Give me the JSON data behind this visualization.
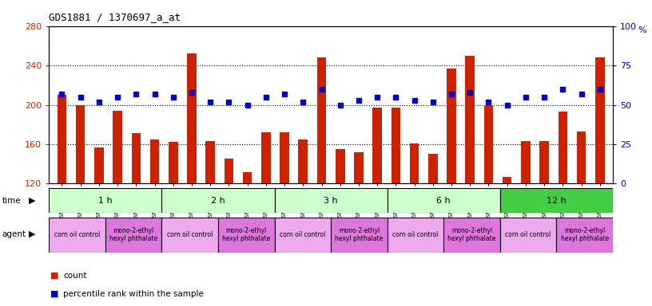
{
  "title": "GDS1881 / 1370697_a_at",
  "samples": [
    "GSM100955",
    "GSM100956",
    "GSM100957",
    "GSM100969",
    "GSM100970",
    "GSM100971",
    "GSM100958",
    "GSM100959",
    "GSM100972",
    "GSM100973",
    "GSM100974",
    "GSM100975",
    "GSM100960",
    "GSM100961",
    "GSM100962",
    "GSM100976",
    "GSM100977",
    "GSM100978",
    "GSM100963",
    "GSM100964",
    "GSM100965",
    "GSM100979",
    "GSM100980",
    "GSM100981",
    "GSM100951",
    "GSM100952",
    "GSM100953",
    "GSM100966",
    "GSM100967",
    "GSM100968"
  ],
  "counts": [
    210,
    200,
    157,
    194,
    171,
    165,
    162,
    252,
    163,
    145,
    132,
    172,
    172,
    165,
    248,
    155,
    152,
    197,
    197,
    161,
    150,
    237,
    250,
    200,
    127,
    163,
    163,
    193,
    173,
    248
  ],
  "percentiles": [
    57,
    55,
    52,
    55,
    57,
    57,
    55,
    58,
    52,
    52,
    50,
    55,
    57,
    52,
    60,
    50,
    53,
    55,
    55,
    53,
    52,
    57,
    58,
    52,
    50,
    55,
    55,
    60,
    57,
    60
  ],
  "ylim_left": [
    120,
    280
  ],
  "ylim_right": [
    0,
    100
  ],
  "yticks_left": [
    120,
    160,
    200,
    240,
    280
  ],
  "yticks_right": [
    0,
    25,
    50,
    75,
    100
  ],
  "bar_color": "#cc2200",
  "dot_color": "#0000cc",
  "time_groups": [
    {
      "label": "1 h",
      "start": 0,
      "end": 6,
      "color": "#ccffcc"
    },
    {
      "label": "2 h",
      "start": 6,
      "end": 12,
      "color": "#ccffcc"
    },
    {
      "label": "3 h",
      "start": 12,
      "end": 18,
      "color": "#ccffcc"
    },
    {
      "label": "6 h",
      "start": 18,
      "end": 24,
      "color": "#ccffcc"
    },
    {
      "label": "12 h",
      "start": 24,
      "end": 30,
      "color": "#44cc44"
    }
  ],
  "agent_groups": [
    {
      "label": "corn oil control",
      "start": 0,
      "end": 3,
      "color": "#ee88ee"
    },
    {
      "label": "mono-2-ethyl\nhexyl phthalate",
      "start": 3,
      "end": 6,
      "color": "#ee88ee"
    },
    {
      "label": "corn oil control",
      "start": 6,
      "end": 9,
      "color": "#ee88ee"
    },
    {
      "label": "mono-2-ethyl\nhexyl phthalate",
      "start": 9,
      "end": 12,
      "color": "#ee88ee"
    },
    {
      "label": "corn oil control",
      "start": 12,
      "end": 15,
      "color": "#ee88ee"
    },
    {
      "label": "mono-2-ethyl\nhexyl phthalate",
      "start": 15,
      "end": 18,
      "color": "#ee88ee"
    },
    {
      "label": "corn oil control",
      "start": 18,
      "end": 21,
      "color": "#ee88ee"
    },
    {
      "label": "mono-2-ethyl\nhexyl phthalate",
      "start": 21,
      "end": 24,
      "color": "#ee88ee"
    },
    {
      "label": "corn oil control",
      "start": 24,
      "end": 27,
      "color": "#ee88ee"
    },
    {
      "label": "mono-2-ethyl\nhexyl phthalate",
      "start": 27,
      "end": 30,
      "color": "#ee88ee"
    }
  ],
  "legend_count_color": "#cc2200",
  "legend_pct_color": "#0000cc",
  "bg_color": "#ffffff",
  "plot_bg_color": "#ffffff",
  "xtick_bg_color": "#dddddd",
  "grid_color": "#000000"
}
